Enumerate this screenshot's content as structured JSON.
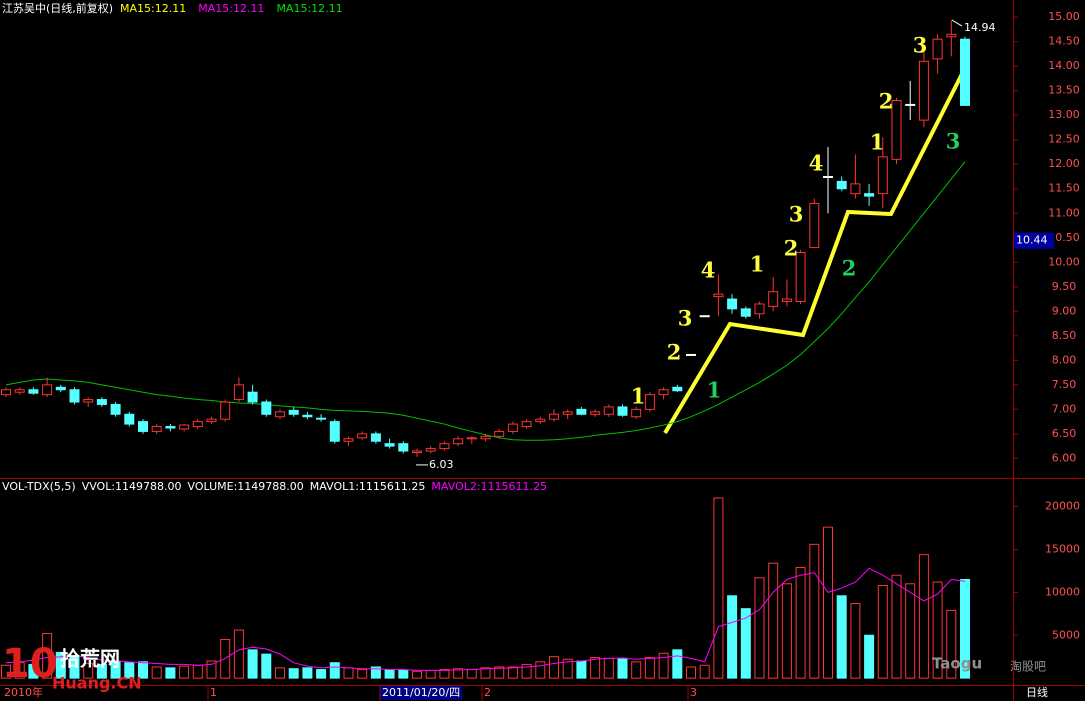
{
  "header": {
    "title": "江苏吴中(日线,前复权)",
    "ma_labels": [
      {
        "text": "MA15:12.11",
        "color": "#ffff00"
      },
      {
        "text": "MA15:12.11",
        "color": "#ff00ff"
      },
      {
        "text": "MA15:12.11",
        "color": "#00e000"
      }
    ]
  },
  "chart_data": [
    {
      "type": "candlestick",
      "open": [
        7.3,
        7.35,
        7.4,
        7.3,
        7.45,
        7.4,
        7.15,
        7.2,
        7.1,
        6.9,
        6.75,
        6.55,
        6.65,
        6.6,
        6.65,
        6.75,
        6.8,
        7.2,
        7.35,
        7.15,
        6.85,
        6.98,
        6.88,
        6.82,
        6.75,
        6.35,
        6.42,
        6.5,
        6.3,
        6.3,
        6.12,
        6.15,
        6.2,
        6.3,
        6.4,
        6.4,
        6.45,
        6.55,
        6.65,
        6.75,
        6.8,
        6.9,
        7.0,
        6.9,
        6.9,
        7.05,
        6.85,
        7.0,
        7.3,
        7.45,
        8.12,
        8.91,
        9.3,
        9.25,
        9.05,
        8.95,
        9.1,
        9.2,
        9.2,
        10.3,
        11.75,
        11.65,
        11.4,
        11.4,
        11.4,
        12.1,
        13.22,
        12.9,
        14.15,
        14.6,
        14.55
      ],
      "high": [
        7.45,
        7.45,
        7.45,
        7.65,
        7.5,
        7.45,
        7.25,
        7.25,
        7.15,
        6.95,
        6.8,
        6.7,
        6.7,
        6.7,
        6.8,
        6.85,
        7.2,
        7.65,
        7.5,
        7.2,
        7.0,
        7.05,
        6.95,
        6.9,
        6.8,
        6.45,
        6.55,
        6.55,
        6.4,
        6.35,
        6.2,
        6.25,
        6.35,
        6.45,
        6.45,
        6.5,
        6.6,
        6.75,
        6.8,
        6.85,
        7.0,
        7.0,
        7.05,
        7.0,
        7.1,
        7.1,
        7.05,
        7.35,
        7.45,
        7.5,
        8.12,
        8.91,
        9.75,
        9.35,
        9.1,
        9.2,
        9.7,
        9.65,
        10.25,
        11.3,
        12.35,
        11.75,
        12.2,
        11.6,
        12.55,
        13.35,
        13.7,
        14.35,
        14.65,
        14.94,
        14.6
      ],
      "low": [
        7.25,
        7.3,
        7.3,
        7.25,
        7.35,
        7.1,
        7.05,
        7.05,
        6.85,
        6.65,
        6.5,
        6.5,
        6.55,
        6.55,
        6.6,
        6.7,
        6.75,
        7.15,
        7.1,
        6.85,
        6.8,
        6.85,
        6.8,
        6.75,
        6.3,
        6.25,
        6.38,
        6.3,
        6.2,
        6.1,
        6.03,
        6.1,
        6.15,
        6.25,
        6.3,
        6.35,
        6.4,
        6.5,
        6.6,
        6.7,
        6.75,
        6.8,
        6.88,
        6.85,
        6.85,
        6.85,
        6.8,
        6.95,
        7.2,
        7.35,
        8.12,
        8.91,
        8.9,
        8.95,
        8.85,
        8.85,
        9.0,
        9.1,
        9.15,
        10.3,
        11.0,
        11.45,
        11.3,
        11.15,
        11.1,
        12.0,
        12.9,
        12.75,
        13.85,
        14.2,
        13.2
      ],
      "close": [
        7.4,
        7.4,
        7.33,
        7.5,
        7.4,
        7.15,
        7.2,
        7.1,
        6.9,
        6.7,
        6.55,
        6.65,
        6.62,
        6.68,
        6.75,
        6.8,
        7.15,
        7.5,
        7.15,
        6.9,
        6.95,
        6.9,
        6.85,
        6.8,
        6.35,
        6.4,
        6.5,
        6.35,
        6.25,
        6.15,
        6.15,
        6.2,
        6.3,
        6.4,
        6.42,
        6.45,
        6.55,
        6.7,
        6.75,
        6.8,
        6.9,
        6.95,
        6.9,
        6.95,
        7.05,
        6.88,
        7.0,
        7.3,
        7.4,
        7.38,
        8.12,
        8.91,
        9.35,
        9.05,
        8.9,
        9.15,
        9.4,
        9.25,
        10.2,
        11.2,
        11.75,
        11.5,
        11.6,
        11.35,
        12.15,
        13.3,
        13.22,
        14.1,
        14.55,
        14.65,
        13.2
      ],
      "up_color": "#ff3232",
      "down_color": "#54ffff",
      "ma": {
        "color": "#00c000",
        "values": [
          7.5,
          7.55,
          7.6,
          7.62,
          7.6,
          7.58,
          7.55,
          7.5,
          7.45,
          7.4,
          7.35,
          7.3,
          7.27,
          7.23,
          7.2,
          7.18,
          7.15,
          7.13,
          7.12,
          7.1,
          7.07,
          7.05,
          7.03,
          7.0,
          6.98,
          6.97,
          6.96,
          6.94,
          6.92,
          6.88,
          6.82,
          6.76,
          6.7,
          6.62,
          6.55,
          6.48,
          6.42,
          6.38,
          6.37,
          6.37,
          6.38,
          6.4,
          6.43,
          6.47,
          6.5,
          6.53,
          6.57,
          6.62,
          6.68,
          6.75,
          6.85,
          6.97,
          7.1,
          7.25,
          7.4,
          7.55,
          7.72,
          7.9,
          8.12,
          8.38,
          8.65,
          8.95,
          9.28,
          9.6,
          9.95,
          10.3,
          10.65,
          11.0,
          11.35,
          11.7,
          12.05
        ]
      },
      "ylim": [
        5.6,
        15.35
      ],
      "yticks": [
        {
          "value": 6,
          "label": "6.00"
        },
        {
          "value": 6.5,
          "label": "6.50"
        },
        {
          "value": 7,
          "label": "7.00"
        },
        {
          "value": 7.5,
          "label": "7.50"
        },
        {
          "value": 8,
          "label": "8.00"
        },
        {
          "value": 8.5,
          "label": "8.50"
        },
        {
          "value": 9,
          "label": "9.00"
        },
        {
          "value": 9.5,
          "label": "9.50"
        },
        {
          "value": 10,
          "label": "10.00"
        },
        {
          "value": 10.5,
          "label": "10.50"
        },
        {
          "value": 11,
          "label": "11.00"
        },
        {
          "value": 11.5,
          "label": "11.50"
        },
        {
          "value": 12,
          "label": "12.00"
        },
        {
          "value": 12.5,
          "label": "12.50"
        },
        {
          "value": 13,
          "label": "13.00"
        },
        {
          "value": 13.5,
          "label": "13.50"
        },
        {
          "value": 14,
          "label": "14.00"
        },
        {
          "value": 14.5,
          "label": "14.50"
        },
        {
          "value": 15,
          "label": "15.00"
        }
      ],
      "high_label": {
        "value": 14.94,
        "label": "14.94"
      },
      "low_label": {
        "value": 6.03,
        "label": "6.03"
      },
      "cursor_label": {
        "value": 10.44,
        "label": "10.44"
      },
      "annotations": [
        {
          "text": "1",
          "color": "#ffff40"
        },
        {
          "text": "2",
          "color": "#ffff40"
        },
        {
          "text": "3",
          "color": "#ffff40"
        },
        {
          "text": "4",
          "color": "#ffff40"
        },
        {
          "text": "1",
          "color": "#ffff40"
        },
        {
          "text": "2",
          "color": "#ffff40"
        },
        {
          "text": "3",
          "color": "#ffff40"
        },
        {
          "text": "4",
          "color": "#ffff40"
        },
        {
          "text": "1",
          "color": "#ffff40"
        },
        {
          "text": "2",
          "color": "#ffff40"
        },
        {
          "text": "3",
          "color": "#ffff40"
        },
        {
          "text": "1",
          "color": "#20d060"
        },
        {
          "text": "2",
          "color": "#20d060"
        },
        {
          "text": "3",
          "color": "#20d060"
        }
      ]
    },
    {
      "type": "bar",
      "legend": [
        {
          "text": "VOL-TDX(5,5)",
          "color": "#ffffff"
        },
        {
          "text": "VVOL:1149788.00",
          "color": "#ffffff"
        },
        {
          "text": "VOLUME:1149788.00",
          "color": "#ffffff"
        },
        {
          "text": "MAVOL1:1115611.25",
          "color": "#ffffff"
        },
        {
          "text": "MAVOL2:1115611.25",
          "color": "#ff00ff"
        }
      ],
      "values": [
        1500,
        1800,
        1600,
        5200,
        3000,
        2500,
        1700,
        1600,
        2000,
        1800,
        1900,
        1300,
        1200,
        1400,
        1500,
        2000,
        4500,
        5600,
        3300,
        2800,
        1200,
        1100,
        1200,
        1000,
        1800,
        1200,
        1000,
        1300,
        1000,
        900,
        800,
        900,
        1000,
        1100,
        1000,
        1200,
        1300,
        1300,
        1600,
        1900,
        2500,
        2200,
        2000,
        2400,
        2300,
        2300,
        1900,
        2400,
        2900,
        3300,
        1300,
        1500,
        21000,
        9600,
        8100,
        11700,
        13400,
        11000,
        12900,
        15600,
        17600,
        9600,
        8700,
        5000,
        10800,
        12000,
        11000,
        14400,
        11200,
        7900,
        11500
      ],
      "mavol": {
        "color": "#ff00ff",
        "values": [
          1800,
          1900,
          2100,
          2400,
          2500,
          2600,
          2400,
          2100,
          2000,
          1900,
          1800,
          1700,
          1600,
          1600,
          1500,
          1600,
          2300,
          3300,
          3600,
          3400,
          2800,
          1800,
          1400,
          1200,
          1300,
          1200,
          1100,
          1100,
          1000,
          1000,
          900,
          900,
          900,
          950,
          1000,
          1100,
          1150,
          1200,
          1300,
          1450,
          1700,
          1900,
          2000,
          2200,
          2300,
          2350,
          2200,
          2300,
          2400,
          2600,
          2300,
          1900,
          6000,
          6500,
          7000,
          8000,
          10000,
          11500,
          12000,
          12300,
          10000,
          10500,
          11200,
          12800,
          12000,
          11000,
          10000,
          9000,
          9800,
          11500,
          11300
        ]
      },
      "ylim": [
        -800,
        23100
      ],
      "yticks": [
        5000,
        10000,
        15000,
        20000
      ]
    }
  ],
  "x_axis": {
    "labels": [
      "2010年",
      "1",
      "2011/01/20/四",
      "2",
      "3"
    ],
    "period": "日线"
  },
  "watermarks": {
    "left_big": "10",
    "left_cn": "拾荒网",
    "left_en": "Huang.CN",
    "right_en": "Taogu",
    "right_cn": "淘股吧"
  }
}
